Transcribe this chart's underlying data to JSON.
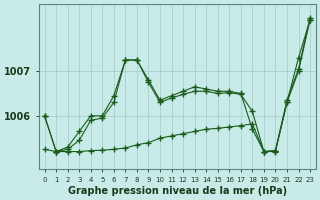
{
  "xlabel": "Graphe pression niveau de la mer (hPa)",
  "background_color": "#c8eae8",
  "grid_color": "#a0ccc8",
  "line_color": "#1a5c1a",
  "x_ticks": [
    0,
    1,
    2,
    3,
    4,
    5,
    6,
    7,
    8,
    9,
    10,
    11,
    12,
    13,
    14,
    15,
    16,
    17,
    18,
    19,
    20,
    21,
    22,
    23
  ],
  "y_ticks": [
    1006,
    1007
  ],
  "ylim": [
    1004.8,
    1008.5
  ],
  "xlim": [
    -0.5,
    23.5
  ],
  "line_straight": [
    1005.25,
    1005.2,
    1005.2,
    1005.2,
    1005.22,
    1005.23,
    1005.25,
    1005.28,
    1005.35,
    1005.4,
    1005.5,
    1005.55,
    1005.6,
    1005.65,
    1005.7,
    1005.72,
    1005.75,
    1005.78,
    1005.82,
    1005.2,
    1005.2,
    1006.3,
    1007.3,
    1008.15
  ],
  "line_upper": [
    1006.0,
    1005.2,
    1005.3,
    1005.65,
    1006.0,
    1006.0,
    1006.45,
    1007.25,
    1007.25,
    1006.8,
    1006.35,
    1006.45,
    1006.55,
    1006.65,
    1006.6,
    1006.55,
    1006.55,
    1006.5,
    1005.7,
    1005.2,
    1005.22,
    1006.35,
    1007.05,
    1008.2
  ],
  "line_mid": [
    1006.0,
    1005.2,
    1005.25,
    1005.45,
    1005.9,
    1005.95,
    1006.3,
    1007.25,
    1007.25,
    1006.75,
    1006.3,
    1006.4,
    1006.48,
    1006.55,
    1006.55,
    1006.5,
    1006.52,
    1006.48,
    1006.1,
    1005.2,
    1005.22,
    1006.3,
    1007.0,
    1008.15
  ]
}
